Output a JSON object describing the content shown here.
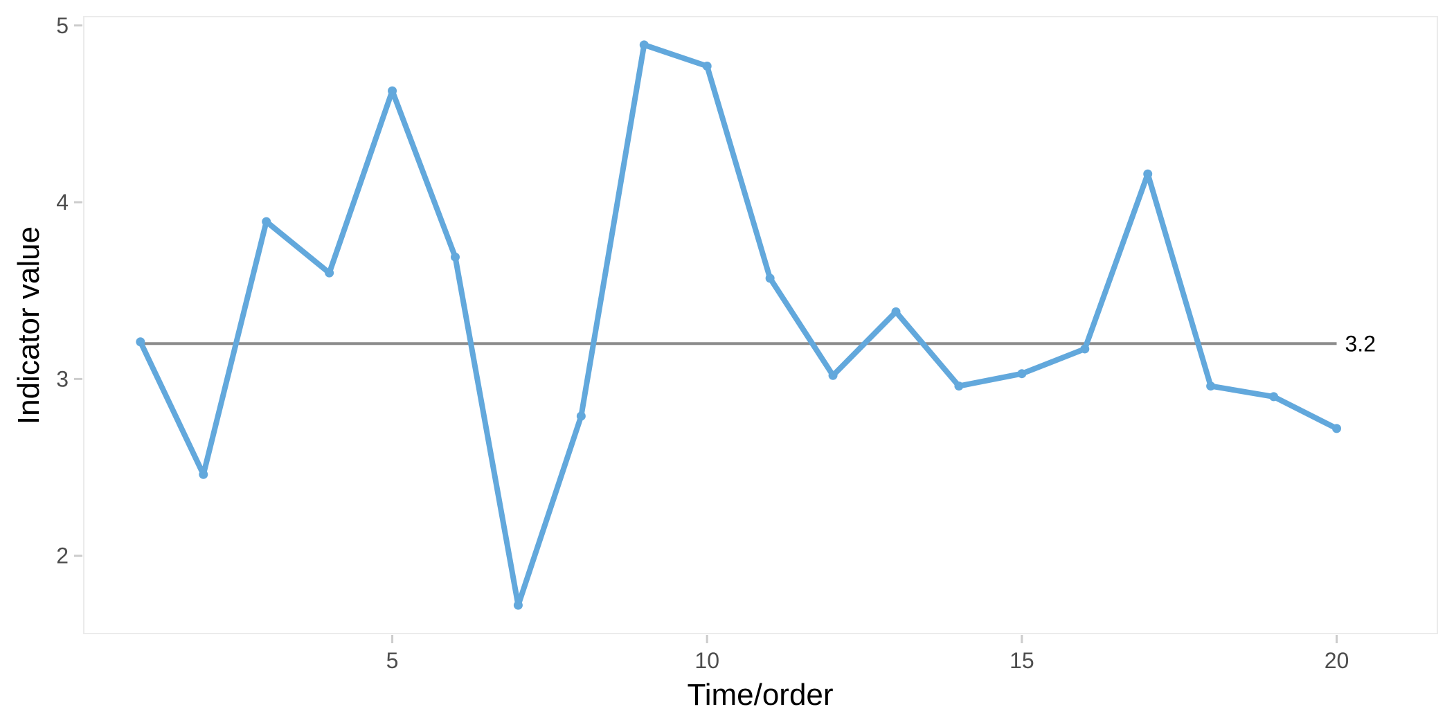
{
  "chart_data": {
    "type": "line",
    "title": "",
    "xlabel": "Time/order",
    "ylabel": "Indicator value",
    "x": [
      1,
      2,
      3,
      4,
      5,
      6,
      7,
      8,
      9,
      10,
      11,
      12,
      13,
      14,
      15,
      16,
      17,
      18,
      19,
      20
    ],
    "series": [
      {
        "values": [
          3.21,
          2.46,
          3.89,
          3.6,
          4.63,
          3.69,
          1.72,
          2.79,
          4.89,
          4.77,
          3.57,
          3.02,
          3.38,
          2.96,
          3.03,
          3.17,
          4.16,
          2.96,
          2.9,
          2.72
        ]
      }
    ],
    "xlim": [
      0.1,
      21.6
    ],
    "ylim": [
      1.56,
      5.05
    ],
    "x_ticks": [
      5,
      10,
      15,
      20
    ],
    "y_ticks": [
      2,
      3,
      4,
      5
    ],
    "reference_line": {
      "value": 3.2,
      "label": "3.2"
    },
    "grid": false,
    "legend": "none",
    "colors": {
      "series": "#62a8dc",
      "reference": "#8c8c8c",
      "panel_border": "#ebebeb",
      "tick": "#cccccc"
    }
  }
}
